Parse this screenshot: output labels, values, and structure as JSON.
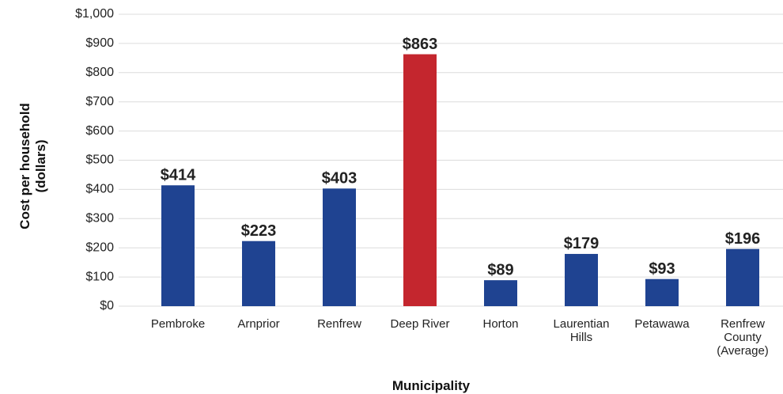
{
  "chart_data": {
    "type": "bar",
    "xlabel": "Municipality",
    "ylabel": "Cost per household (dollars)",
    "categories": [
      "Pembroke",
      "Arnprior",
      "Renfrew",
      "Deep River",
      "Horton",
      "Laurentian Hills",
      "Petawawa",
      "Renfrew County (Average)"
    ],
    "values": [
      414,
      223,
      403,
      863,
      89,
      179,
      93,
      196
    ],
    "value_labels": [
      "$414",
      "$223",
      "$403",
      "$863",
      "$89",
      "$179",
      "$93",
      "$196"
    ],
    "colors": [
      "#1f4391",
      "#1f4391",
      "#1f4391",
      "#c4262e",
      "#1f4391",
      "#1f4391",
      "#1f4391",
      "#1f4391"
    ],
    "ylim": [
      0,
      1000
    ],
    "yticks": [
      {
        "value": 0,
        "label": "$0"
      },
      {
        "value": 100,
        "label": "$100"
      },
      {
        "value": 200,
        "label": "$200"
      },
      {
        "value": 300,
        "label": "$300"
      },
      {
        "value": 400,
        "label": "$400"
      },
      {
        "value": 500,
        "label": "$500"
      },
      {
        "value": 600,
        "label": "$600"
      },
      {
        "value": 700,
        "label": "$700"
      },
      {
        "value": 800,
        "label": "$800"
      },
      {
        "value": 900,
        "label": "$900"
      },
      {
        "value": 1000,
        "label": "$1,000"
      }
    ],
    "grid": true
  }
}
